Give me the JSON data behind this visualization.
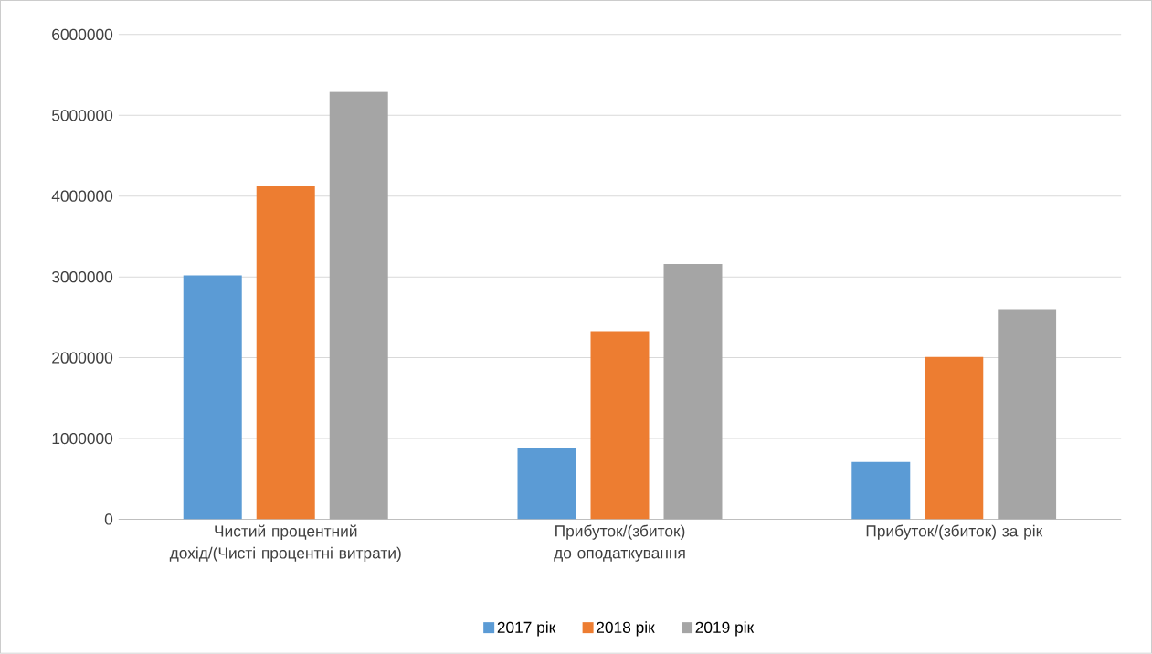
{
  "chart_data": {
    "type": "bar",
    "categories": [
      "Чистий процентний дохід/(Чисті процентні витрати)",
      "Прибуток/(збиток) до оподаткування",
      "Прибуток/(збиток) за рік"
    ],
    "series": [
      {
        "name": "2017 рік",
        "color": "#5b9bd5",
        "values": [
          3020000,
          880000,
          710000
        ]
      },
      {
        "name": "2018 рік",
        "color": "#ed7d31",
        "values": [
          4120000,
          2330000,
          2010000
        ]
      },
      {
        "name": "2019 рік",
        "color": "#a5a5a5",
        "values": [
          5290000,
          3160000,
          2600000
        ]
      }
    ],
    "ylim": [
      0,
      6000000
    ],
    "yticks": [
      0,
      1000000,
      2000000,
      3000000,
      4000000,
      5000000,
      6000000
    ],
    "grid": "y",
    "legend": "bottom"
  }
}
